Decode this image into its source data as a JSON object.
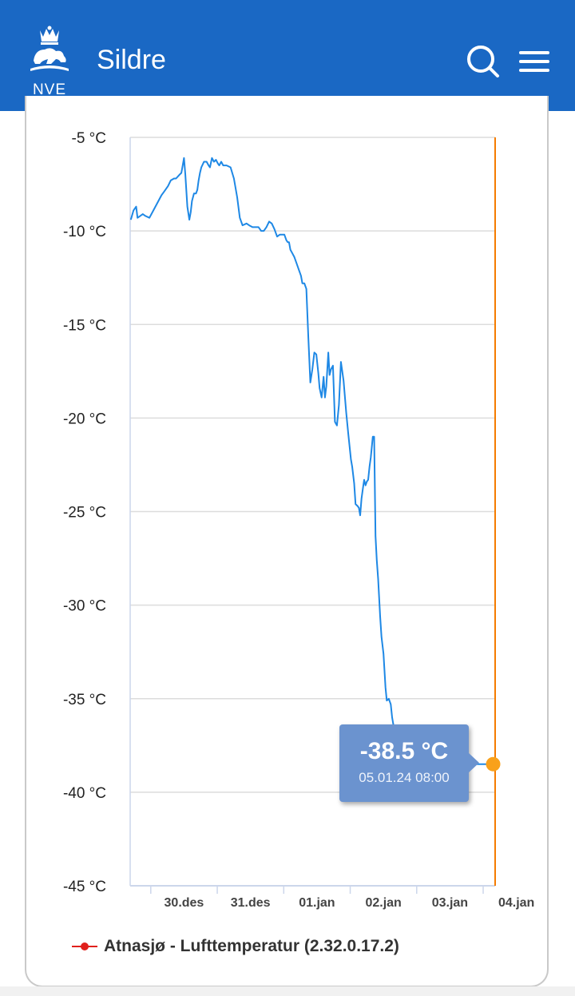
{
  "header": {
    "logo_text": "NVE",
    "title": "Sildre",
    "search_icon": "search-icon",
    "menu_icon": "hamburger-menu-icon",
    "background": "#1a68c4"
  },
  "chart_data": {
    "type": "line",
    "title": "",
    "xlabel": "",
    "ylabel": "",
    "ylim": [
      -45,
      -5
    ],
    "y_ticks": [
      -5,
      -10,
      -15,
      -20,
      -25,
      -30,
      -35,
      -40,
      -45
    ],
    "y_tick_labels": [
      "-5 °C",
      "-10 °C",
      "-15 °C",
      "-20 °C",
      "-25 °C",
      "-30 °C",
      "-35 °C",
      "-40 °C",
      "-45 °C"
    ],
    "x_tick_labels": [
      "30.des",
      "31.des",
      "01.jan",
      "02.jan",
      "03.jan",
      "04.jan"
    ],
    "x_unit": "day offset from 29.des 00:00 (tick 30.des = 1)",
    "xlim": [
      0.69,
      6.18
    ],
    "grid": true,
    "series": [
      {
        "name": "Atnasjø - Lufttemperatur (2.32.0.17.2)",
        "color": "#1e88e5",
        "legend_color": "#e0201c",
        "x": [
          0.7,
          0.74,
          0.78,
          0.8,
          0.84,
          0.88,
          0.92,
          0.98,
          1.04,
          1.1,
          1.16,
          1.2,
          1.26,
          1.3,
          1.35,
          1.38,
          1.43,
          1.46,
          1.48,
          1.5,
          1.52,
          1.55,
          1.58,
          1.6,
          1.62,
          1.65,
          1.68,
          1.7,
          1.72,
          1.74,
          1.76,
          1.8,
          1.84,
          1.87,
          1.89,
          1.92,
          1.95,
          1.98,
          2.01,
          2.03,
          2.06,
          2.09,
          2.14,
          2.2,
          2.25,
          2.3,
          2.34,
          2.38,
          2.44,
          2.48,
          2.53,
          2.57,
          2.62,
          2.66,
          2.7,
          2.74,
          2.78,
          2.82,
          2.86,
          2.9,
          2.94,
          2.98,
          3.01,
          3.04,
          3.06,
          3.08,
          3.1,
          3.13,
          3.16,
          3.19,
          3.23,
          3.26,
          3.28,
          3.31,
          3.34,
          3.37,
          3.4,
          3.43,
          3.46,
          3.49,
          3.52,
          3.54,
          3.57,
          3.6,
          3.62,
          3.64,
          3.67,
          3.69,
          3.71,
          3.74,
          3.77,
          3.8,
          3.83,
          3.86,
          3.9,
          3.94,
          3.97,
          4.01,
          4.03,
          4.06,
          4.08,
          4.11,
          4.13,
          4.15,
          4.17,
          4.19,
          4.21,
          4.23,
          4.25,
          4.27,
          4.29,
          4.31,
          4.34,
          4.36,
          4.38,
          4.4,
          4.42,
          4.45,
          4.47,
          4.5,
          4.53,
          4.55,
          4.58,
          4.61,
          4.63,
          4.65,
          4.67,
          4.69,
          4.71,
          4.73,
          4.76,
          4.78,
          4.8,
          4.83,
          4.86,
          4.89,
          4.92,
          4.96,
          4.99,
          5.01,
          5.03,
          5.05,
          5.07,
          5.1,
          5.13,
          5.15,
          5.17,
          5.19,
          5.21,
          5.23,
          5.26,
          5.28,
          5.3,
          5.32,
          5.35,
          5.37,
          5.4,
          5.43,
          5.46,
          5.49,
          5.52,
          5.54,
          5.56,
          5.58,
          5.61,
          5.64,
          5.67,
          5.7,
          5.74,
          5.77,
          5.79,
          5.83,
          5.86,
          5.89,
          5.91,
          5.93,
          5.95,
          5.98,
          6.0,
          6.03,
          6.06,
          6.09,
          6.12,
          6.14
        ],
        "y": [
          -9.4,
          -8.9,
          -8.7,
          -9.3,
          -9.2,
          -9.1,
          -9.2,
          -9.3,
          -8.9,
          -8.5,
          -8.1,
          -7.9,
          -7.6,
          -7.3,
          -7.2,
          -7.2,
          -7.0,
          -6.9,
          -6.5,
          -6.1,
          -7.0,
          -8.7,
          -9.4,
          -9.0,
          -8.4,
          -8.0,
          -8.0,
          -7.8,
          -7.3,
          -6.9,
          -6.6,
          -6.3,
          -6.3,
          -6.5,
          -6.6,
          -6.1,
          -6.3,
          -6.2,
          -6.4,
          -6.5,
          -6.3,
          -6.5,
          -6.5,
          -6.6,
          -7.2,
          -8.2,
          -9.3,
          -9.7,
          -9.6,
          -9.7,
          -9.8,
          -9.8,
          -9.8,
          -10.0,
          -10.0,
          -9.8,
          -9.5,
          -9.6,
          -9.9,
          -10.3,
          -10.2,
          -10.2,
          -10.2,
          -10.5,
          -10.6,
          -10.6,
          -11.0,
          -11.2,
          -11.4,
          -11.7,
          -12.1,
          -12.4,
          -12.8,
          -12.8,
          -13.1,
          -15.7,
          -18.1,
          -17.4,
          -16.5,
          -16.6,
          -17.6,
          -18.4,
          -18.9,
          -17.8,
          -18.9,
          -18.3,
          -16.5,
          -17.7,
          -17.4,
          -17.2,
          -20.2,
          -20.4,
          -19.3,
          -17.0,
          -18.0,
          -19.7,
          -20.8,
          -22.2,
          -22.6,
          -23.5,
          -24.6,
          -24.7,
          -24.8,
          -25.2,
          -24.3,
          -23.8,
          -23.3,
          -23.6,
          -23.4,
          -23.3,
          -22.6,
          -22.1,
          -21.0,
          -21.0,
          -26.3,
          -27.6,
          -28.6,
          -30.6,
          -31.7,
          -32.6,
          -34.4,
          -35.1,
          -35.0,
          -35.3,
          -36.0,
          -36.4,
          -36.5,
          -36.7,
          -37.1,
          -37.3,
          -37.5,
          -37.4,
          -37.7,
          -38.0,
          -38.2,
          -38.1,
          -38.3,
          -38.4,
          -38.2,
          -38.3,
          -38.4,
          -38.3,
          -38.5,
          -38.4,
          -38.5,
          -38.3,
          -38.4,
          -38.5,
          -38.4,
          -38.4,
          -38.5,
          -38.4,
          -38.5,
          -38.4,
          -38.5,
          -38.5,
          -38.4,
          -38.5,
          -38.5,
          -38.4,
          -38.5,
          -38.5,
          -38.4,
          -38.5,
          -38.5,
          -38.4,
          -38.5,
          -38.5,
          -38.4,
          -38.5,
          -38.5,
          -38.5,
          -38.4,
          -38.5,
          -38.5,
          -38.5,
          -38.5,
          -38.5,
          -38.5,
          -38.5,
          -38.5,
          -38.5,
          -38.5,
          -38.5
        ]
      }
    ],
    "crosshair_x": 6.18,
    "crosshair_color": "#f57c00",
    "tooltip": {
      "value": "-38.5 °C",
      "time": "05.01.24 08:00",
      "x": 6.15,
      "y": -38.5,
      "marker_color": "#f9a11b"
    },
    "legend": "bottom-left"
  }
}
